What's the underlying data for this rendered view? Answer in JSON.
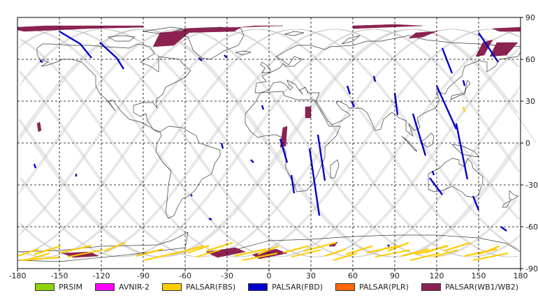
{
  "map": {
    "x_ticks": [
      "-180",
      "-150",
      "-120",
      "-90",
      "-60",
      "-30",
      "0",
      "30",
      "60",
      "90",
      "120",
      "150",
      "180"
    ],
    "y_ticks": [
      "90",
      "60",
      "30",
      "0",
      "-30",
      "-60",
      "-90"
    ],
    "x_range": [
      -180,
      180
    ],
    "y_range": [
      -90,
      90
    ],
    "grid": "dashed",
    "colors": {
      "coast": "#3a3a3a",
      "orbit": "#c8c8c8",
      "grid": "#000000",
      "PRSIM": "#8fd400",
      "AVNIR-2": "#ff00ff",
      "PALSAR(FBS)": "#ffcc00",
      "PALSAR(FBD)": "#0000cc",
      "PALSAR(PLR)": "#ff6600",
      "PALSAR(WB1/WB2)": "#8b2252"
    }
  },
  "legend": [
    {
      "label": "PRSIM",
      "color": "#8fd400"
    },
    {
      "label": "AVNIR-2",
      "color": "#ff00ff"
    },
    {
      "label": "PALSAR(FBS)",
      "color": "#ffcc00"
    },
    {
      "label": "PALSAR(FBD)",
      "color": "#0000cc"
    },
    {
      "label": "PALSAR(PLR)",
      "color": "#ff6600"
    },
    {
      "label": "PALSAR(WB1/WB2)",
      "color": "#8b2252"
    }
  ]
}
